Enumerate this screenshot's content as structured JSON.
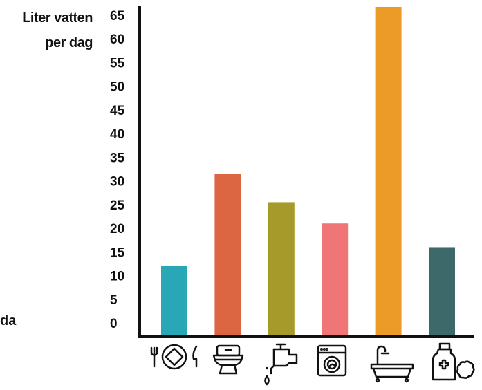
{
  "chart_data": {
    "type": "bar",
    "ylabel": [
      "Liter vatten",
      "per dag"
    ],
    "cut_off_text": "da",
    "ylim": [
      0,
      65
    ],
    "yticks": [
      0,
      5,
      10,
      15,
      20,
      25,
      30,
      35,
      40,
      45,
      50,
      55,
      60,
      65
    ],
    "categories": [
      "dining-plate-icon",
      "toilet-icon",
      "faucet-icon",
      "washing-machine-icon",
      "bathtub-icon",
      "cleaning-bottle-icon"
    ],
    "values": [
      12,
      31.5,
      25.5,
      21,
      67,
      16
    ],
    "colors": [
      "#29a7b7",
      "#dd6642",
      "#a59a2a",
      "#ef7577",
      "#ed9b28",
      "#3c6a6b"
    ],
    "grid": false
  }
}
